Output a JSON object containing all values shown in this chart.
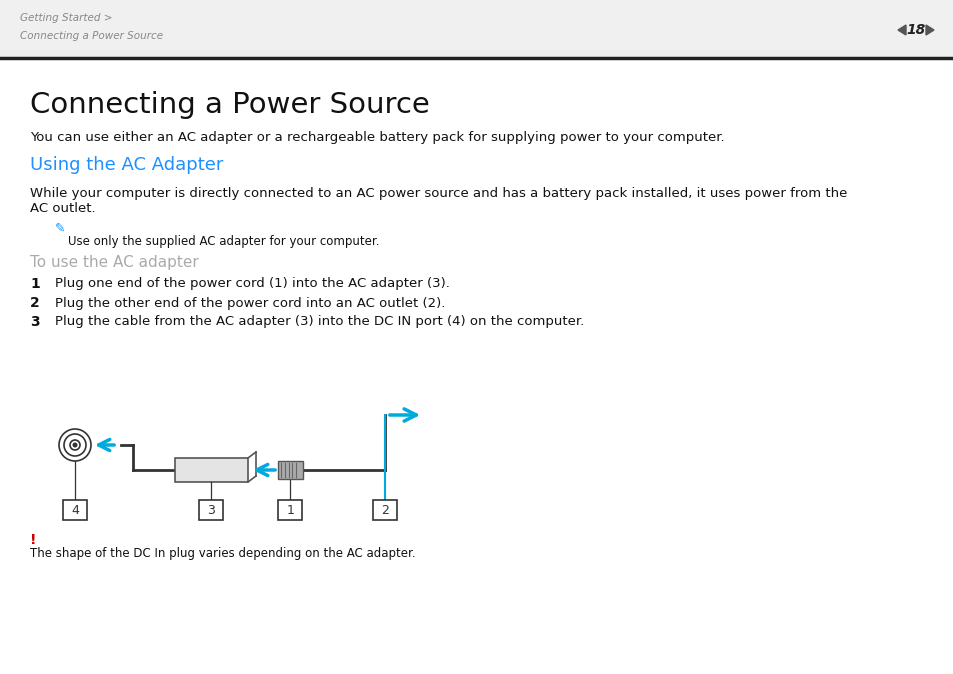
{
  "bg_color": "#ffffff",
  "header_text1": "Getting Started >",
  "header_text2": "Connecting a Power Source",
  "page_number": "18",
  "title": "Connecting a Power Source",
  "subtitle_color": "#1e90ff",
  "subtitle": "Using the AC Adapter",
  "body_text1": "You can use either an AC adapter or a rechargeable battery pack for supplying power to your computer.",
  "body_text2_line1": "While your computer is directly connected to an AC power source and has a battery pack installed, it uses power from the",
  "body_text2_line2": "AC outlet.",
  "note_text": "Use only the supplied AC adapter for your computer.",
  "subheading": "To use the AC adapter",
  "subheading_color": "#aaaaaa",
  "step1": "Plug one end of the power cord (1) into the AC adapter (3).",
  "step2": "Plug the other end of the power cord into an AC outlet (2).",
  "step3": "Plug the cable from the AC adapter (3) into the DC IN port (4) on the computer.",
  "warning_text": "The shape of the DC In plug varies depending on the AC adapter.",
  "warning_exclamation_color": "#cc0000",
  "arrow_color": "#00aadd",
  "header_bg": "#f0f0f0",
  "header_text_color": "#888888",
  "header_line_color": "#222222",
  "body_text_color": "#111111",
  "diagram_line_color": "#333333",
  "adapter_fill": "#e8e8e8",
  "adapter_edge": "#555555"
}
